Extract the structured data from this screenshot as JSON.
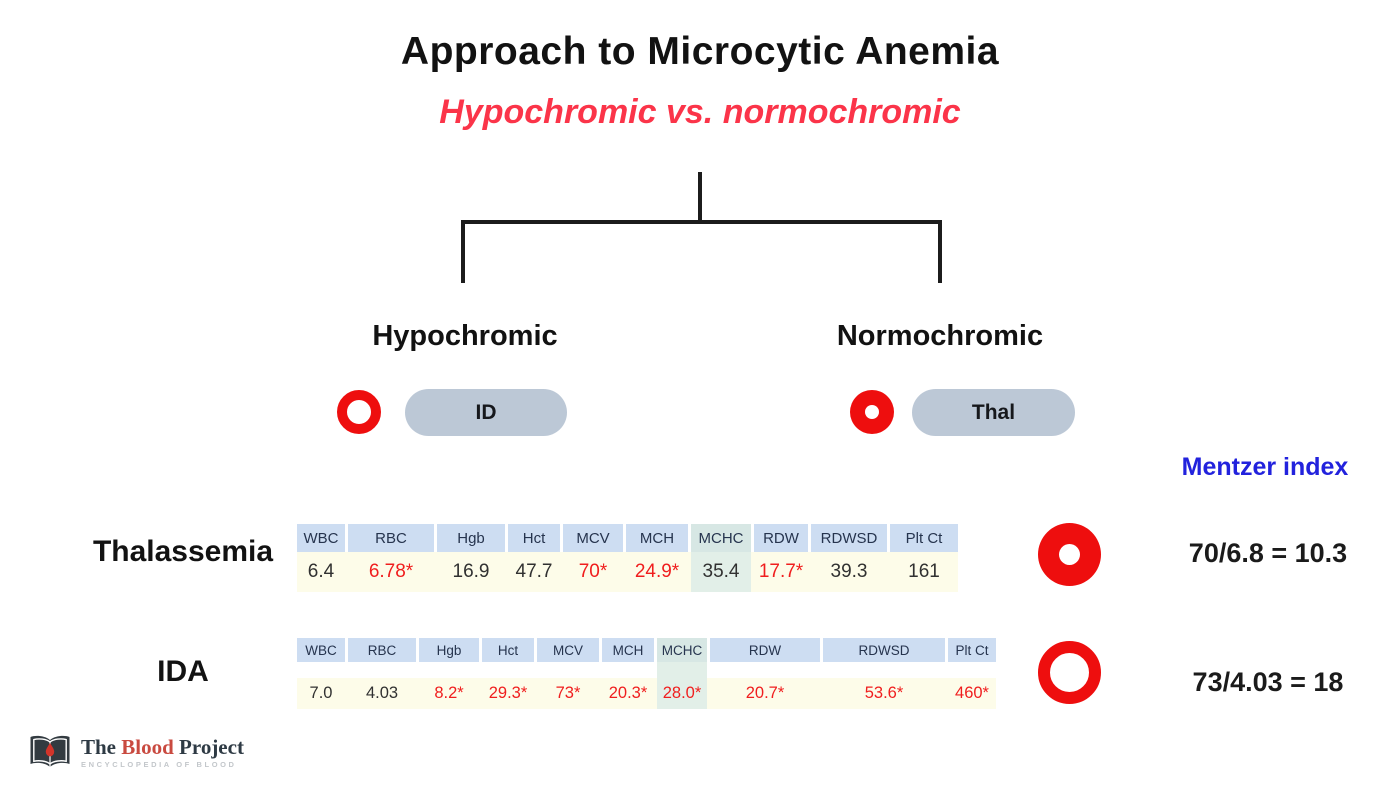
{
  "title": "Approach to Microcytic Anemia",
  "subtitle": "Hypochromic vs. normochromic",
  "branches": {
    "hypochromic": {
      "label": "Hypochromic",
      "pill_label": "ID"
    },
    "normochromic": {
      "label": "Normochromic",
      "pill_label": "Thal"
    }
  },
  "mentzer": {
    "heading": "Mentzer index"
  },
  "rows": [
    {
      "label": "Thalassemia",
      "rbc_morphology": "normochromic",
      "mentzer_calc": "70/6.8 = 10.3",
      "table": {
        "headers": [
          "WBC",
          "RBC",
          "Hgb",
          "Hct",
          "MCV",
          "MCH",
          "MCHC",
          "RDW",
          "RDWSD",
          "Plt Ct"
        ],
        "values": [
          "6.4",
          "6.78*",
          "16.9",
          "47.7",
          "70*",
          "24.9*",
          "35.4",
          "17.7*",
          "39.3",
          "161"
        ],
        "abnormal": [
          false,
          true,
          false,
          false,
          true,
          true,
          false,
          true,
          false,
          false
        ],
        "highlighted_column": "MCHC"
      }
    },
    {
      "label": "IDA",
      "rbc_morphology": "hypochromic",
      "mentzer_calc": "73/4.03 = 18",
      "table": {
        "headers": [
          "WBC",
          "RBC",
          "Hgb",
          "Hct",
          "MCV",
          "MCH",
          "MCHC",
          "RDW",
          "RDWSD",
          "Plt Ct"
        ],
        "values": [
          "7.0",
          "4.03",
          "8.2*",
          "29.3*",
          "73*",
          "20.3*",
          "28.0*",
          "20.7*",
          "53.6*",
          "460*"
        ],
        "abnormal": [
          false,
          false,
          true,
          true,
          true,
          true,
          true,
          true,
          true,
          true
        ],
        "highlighted_column": "MCHC"
      }
    }
  ],
  "logo": {
    "title_part1": "The",
    "title_part2": "Blood",
    "title_part3": "Project",
    "tagline": "ENCYCLOPEDIA OF BLOOD"
  },
  "colors": {
    "subtitle_red": "#fb3449",
    "accent_red": "#ee0e0e",
    "mentzer_blue": "#2222dd",
    "table_header_bg": "#cdddf2",
    "table_value_bg": "#fdfce9",
    "mchc_highlight_header": "#d7e7e4",
    "mchc_highlight_value": "#e2efe8",
    "pill_bg": "#bcc8d6",
    "abnormal_red": "#f01e1e"
  }
}
